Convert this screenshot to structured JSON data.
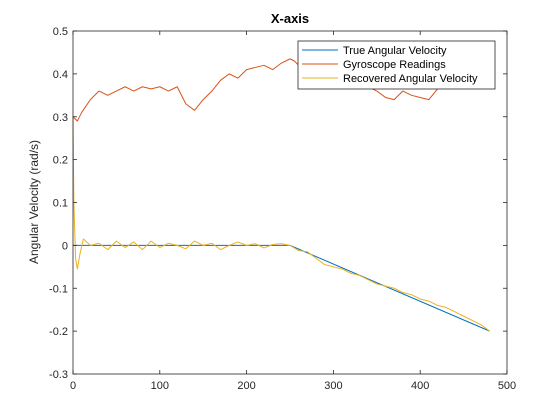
{
  "chart_data": {
    "type": "line",
    "title": "X-axis",
    "xlabel": "",
    "ylabel": "Angular Velocity (rad/s)",
    "xlim": [
      0,
      500
    ],
    "ylim": [
      -0.3,
      0.5
    ],
    "x_ticks": [
      0,
      100,
      200,
      300,
      400,
      500
    ],
    "y_ticks": [
      -0.3,
      -0.2,
      -0.1,
      0,
      0.1,
      0.2,
      0.3,
      0.4,
      0.5
    ],
    "x_tick_labels": [
      "0",
      "100",
      "200",
      "300",
      "400",
      "500"
    ],
    "y_tick_labels": [
      "-0.3",
      "-0.2",
      "-0.1",
      "0",
      "0.1",
      "0.2",
      "0.3",
      "0.4",
      "0.5"
    ],
    "grid": false,
    "legend_position": "top-right",
    "series": [
      {
        "name": "True Angular Velocity",
        "color": "#0072BD",
        "x": [
          0,
          250,
          480
        ],
        "y": [
          0,
          0,
          -0.2
        ]
      },
      {
        "name": "Gyroscope Readings",
        "color": "#D95319",
        "x": [
          0,
          5,
          10,
          20,
          30,
          40,
          50,
          60,
          70,
          80,
          90,
          100,
          110,
          120,
          130,
          140,
          150,
          160,
          170,
          180,
          190,
          200,
          210,
          220,
          230,
          240,
          250,
          255,
          260,
          270,
          280,
          290,
          300,
          310,
          320,
          330,
          340,
          350,
          360,
          370,
          380,
          390,
          400,
          410,
          420
        ],
        "y": [
          0.3,
          0.29,
          0.31,
          0.34,
          0.36,
          0.35,
          0.36,
          0.37,
          0.36,
          0.37,
          0.365,
          0.37,
          0.36,
          0.37,
          0.33,
          0.315,
          0.34,
          0.36,
          0.385,
          0.4,
          0.39,
          0.41,
          0.415,
          0.42,
          0.41,
          0.425,
          0.435,
          0.43,
          0.42,
          0.415,
          0.41,
          0.4,
          0.405,
          0.39,
          0.395,
          0.38,
          0.37,
          0.36,
          0.345,
          0.34,
          0.36,
          0.35,
          0.345,
          0.34,
          0.365
        ]
      },
      {
        "name": "Recovered Angular Velocity",
        "color": "#EDB120",
        "x": [
          0,
          1,
          3,
          5,
          8,
          12,
          20,
          30,
          40,
          50,
          60,
          70,
          80,
          90,
          100,
          110,
          120,
          130,
          140,
          150,
          160,
          170,
          180,
          190,
          200,
          210,
          220,
          230,
          240,
          250,
          260,
          270,
          280,
          290,
          300,
          310,
          320,
          330,
          340,
          350,
          360,
          370,
          380,
          390,
          400,
          410,
          420,
          430,
          440,
          450,
          460,
          470,
          480
        ],
        "y": [
          0.3,
          0.1,
          -0.03,
          -0.055,
          -0.02,
          0.015,
          0.0,
          0.005,
          -0.01,
          0.01,
          -0.005,
          0.008,
          -0.01,
          0.01,
          -0.005,
          0.005,
          0.0,
          -0.008,
          0.01,
          0.0,
          0.005,
          -0.01,
          0.0,
          0.008,
          0.0,
          0.004,
          -0.006,
          0.002,
          0.004,
          0.0,
          -0.012,
          -0.015,
          -0.03,
          -0.045,
          -0.05,
          -0.055,
          -0.065,
          -0.07,
          -0.08,
          -0.09,
          -0.095,
          -0.1,
          -0.11,
          -0.115,
          -0.125,
          -0.13,
          -0.14,
          -0.145,
          -0.155,
          -0.165,
          -0.175,
          -0.185,
          -0.2
        ]
      }
    ]
  }
}
